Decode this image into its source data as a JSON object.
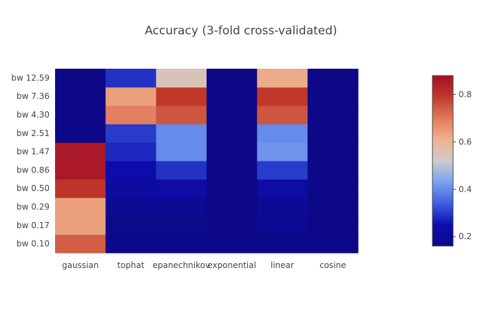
{
  "chart_data": {
    "type": "heatmap",
    "title": "Accuracy (3-fold cross-validated)",
    "x_categories": [
      "gaussian",
      "tophat",
      "epanechnikov",
      "exponential",
      "linear",
      "cosine"
    ],
    "y_categories": [
      "bw 0.10",
      "bw 0.17",
      "bw 0.29",
      "bw 0.50",
      "bw 0.86",
      "bw 1.47",
      "bw 2.51",
      "bw 4.30",
      "bw 7.36",
      "bw 12.59"
    ],
    "z": [
      [
        0.74,
        0.16,
        0.16,
        0.16,
        0.16,
        0.16
      ],
      [
        0.64,
        0.17,
        0.17,
        0.16,
        0.18,
        0.16
      ],
      [
        0.64,
        0.19,
        0.19,
        0.16,
        0.19,
        0.16
      ],
      [
        0.8,
        0.22,
        0.23,
        0.16,
        0.23,
        0.16
      ],
      [
        0.86,
        0.24,
        0.29,
        0.16,
        0.3,
        0.16
      ],
      [
        0.86,
        0.28,
        0.4,
        0.16,
        0.41,
        0.16
      ],
      [
        0.16,
        0.3,
        0.4,
        0.16,
        0.4,
        0.16
      ],
      [
        0.16,
        0.69,
        0.75,
        0.16,
        0.75,
        0.16
      ],
      [
        0.16,
        0.64,
        0.79,
        0.16,
        0.79,
        0.16
      ],
      [
        0.16,
        0.29,
        0.55,
        0.16,
        0.62,
        0.16
      ]
    ],
    "zmin": 0.16,
    "zmax": 0.88,
    "colorscale": [
      "#0d0887",
      "#0d0dae",
      "#3e5fe0",
      "#7aa2f0",
      "#cccccc",
      "#efb28f",
      "#e07a5a",
      "#c0392b",
      "#a50f26"
    ],
    "colorbar_ticks": [
      0.2,
      0.4,
      0.6,
      0.8
    ],
    "colorbar_tick_labels": [
      "0.2",
      "0.4",
      "0.6",
      "0.8"
    ]
  }
}
